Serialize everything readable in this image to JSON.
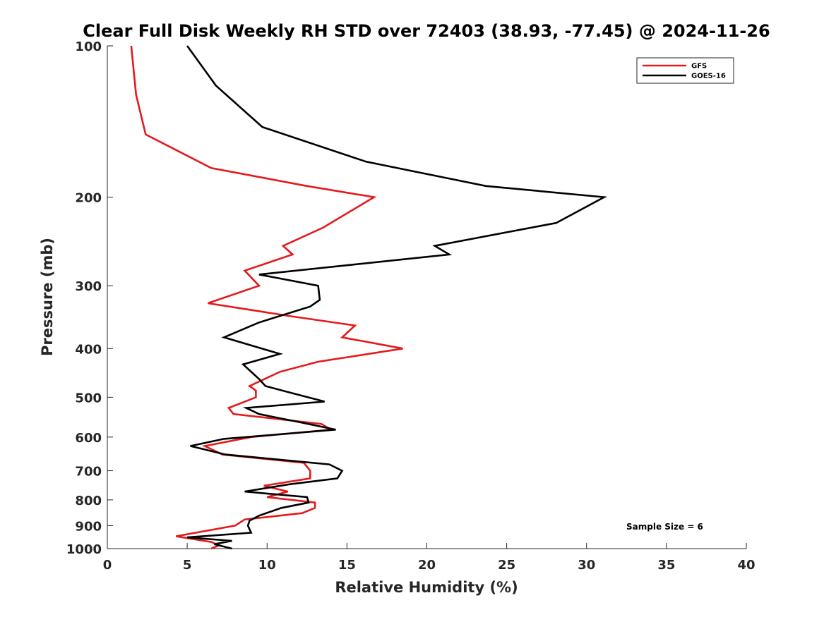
{
  "chart_data": {
    "type": "line",
    "title": "Clear Full Disk Weekly RH STD over 72403 (38.93, -77.45) @ 2024-11-26",
    "xlabel": "Relative Humidity (%)",
    "ylabel": "Pressure (mb)",
    "xlim": [
      0,
      40
    ],
    "ylim": [
      100,
      1000
    ],
    "y_scale": "log",
    "y_reversed": true,
    "grid": false,
    "legend_position": "top-right",
    "x_ticks": [
      0,
      5,
      10,
      15,
      20,
      25,
      30,
      35,
      40
    ],
    "x_tick_labels": [
      "0",
      "5",
      "10",
      "15",
      "20",
      "25",
      "30",
      "35",
      "40"
    ],
    "y_ticks": [
      100,
      200,
      300,
      400,
      500,
      600,
      700,
      800,
      900,
      1000
    ],
    "y_tick_labels": [
      "100",
      "200",
      "300",
      "400",
      "500",
      "600",
      "700",
      "800",
      "900",
      "1000"
    ],
    "series": [
      {
        "name": "GFS",
        "color": "#e41a1c",
        "points": [
          [
            1.5,
            100
          ],
          [
            1.8,
            125
          ],
          [
            2.4,
            150
          ],
          [
            6.5,
            175
          ],
          [
            12.5,
            190
          ],
          [
            16.7,
            200
          ],
          [
            13.5,
            230
          ],
          [
            11,
            250
          ],
          [
            11.6,
            260
          ],
          [
            8.6,
            280
          ],
          [
            9.5,
            300
          ],
          [
            6.3,
            325
          ],
          [
            11.5,
            345
          ],
          [
            15.5,
            360
          ],
          [
            14.7,
            380
          ],
          [
            18.5,
            400
          ],
          [
            13.2,
            425
          ],
          [
            10.8,
            445
          ],
          [
            8.9,
            475
          ],
          [
            9.3,
            485
          ],
          [
            9.3,
            500
          ],
          [
            7.6,
            525
          ],
          [
            7.9,
            540
          ],
          [
            13.4,
            565
          ],
          [
            14,
            580
          ],
          [
            9,
            600
          ],
          [
            6.1,
            625
          ],
          [
            7.2,
            650
          ],
          [
            12.3,
            675
          ],
          [
            12.7,
            700
          ],
          [
            12.7,
            725
          ],
          [
            9.8,
            750
          ],
          [
            11.3,
            770
          ],
          [
            10,
            790
          ],
          [
            13,
            810
          ],
          [
            13,
            830
          ],
          [
            12.2,
            850
          ],
          [
            8.6,
            875
          ],
          [
            8,
            900
          ],
          [
            4.3,
            945
          ],
          [
            6.5,
            970
          ],
          [
            7,
            985
          ],
          [
            6.5,
            1000
          ]
        ]
      },
      {
        "name": "GOES-16",
        "color": "#000000",
        "points": [
          [
            5,
            100
          ],
          [
            6.8,
            120
          ],
          [
            9.7,
            145
          ],
          [
            16.2,
            170
          ],
          [
            23.7,
            190
          ],
          [
            31.1,
            200
          ],
          [
            28.1,
            225
          ],
          [
            20.5,
            250
          ],
          [
            21.4,
            260
          ],
          [
            9.5,
            285
          ],
          [
            13.2,
            300
          ],
          [
            13.3,
            320
          ],
          [
            12.7,
            330
          ],
          [
            9.5,
            355
          ],
          [
            7.3,
            380
          ],
          [
            10.8,
            410
          ],
          [
            8.5,
            430
          ],
          [
            9.5,
            460
          ],
          [
            9.9,
            475
          ],
          [
            11.5,
            490
          ],
          [
            13.6,
            510
          ],
          [
            8.7,
            525
          ],
          [
            9.5,
            540
          ],
          [
            12,
            560
          ],
          [
            14.3,
            580
          ],
          [
            7.3,
            605
          ],
          [
            5.2,
            625
          ],
          [
            7.4,
            650
          ],
          [
            13.9,
            680
          ],
          [
            14.7,
            700
          ],
          [
            14.4,
            725
          ],
          [
            11.4,
            745
          ],
          [
            8.6,
            770
          ],
          [
            12.5,
            790
          ],
          [
            12.6,
            810
          ],
          [
            10.9,
            830
          ],
          [
            9.5,
            860
          ],
          [
            8.9,
            880
          ],
          [
            8.8,
            900
          ],
          [
            9,
            930
          ],
          [
            5,
            950
          ],
          [
            7.8,
            965
          ],
          [
            6.7,
            980
          ],
          [
            7.8,
            1000
          ]
        ]
      }
    ],
    "annotations": [
      {
        "text": "Sample Size = 6",
        "position": "bottom-right"
      }
    ]
  }
}
